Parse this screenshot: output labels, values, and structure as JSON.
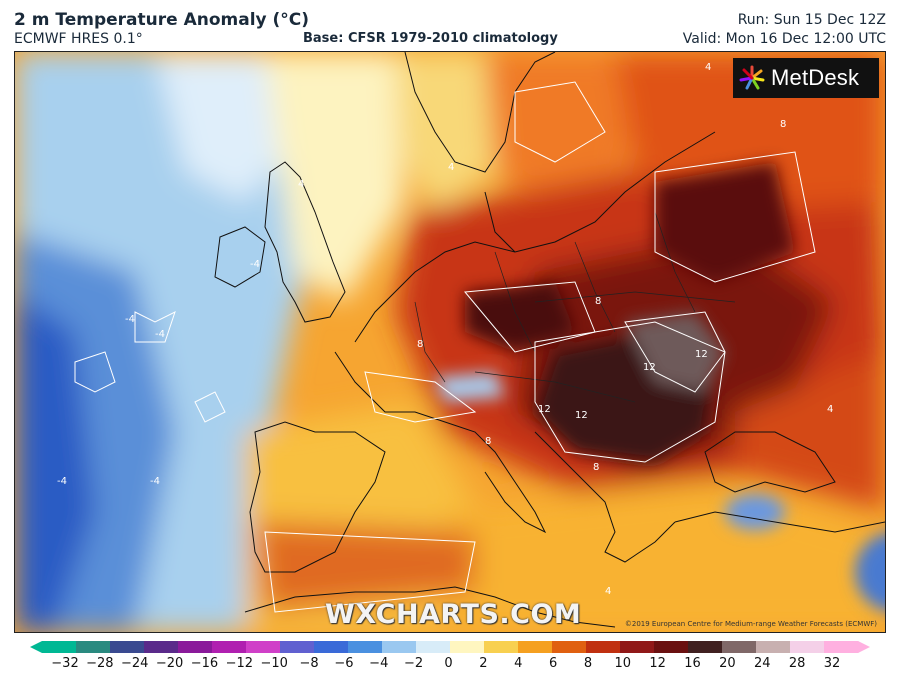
{
  "header": {
    "title": "2 m Temperature Anomaly (°C)",
    "model": "ECMWF HRES 0.1°",
    "base": "Base: CFSR 1979-2010 climatology",
    "run": "Run: Sun 15 Dec 12Z",
    "valid": "Valid: Mon 16 Dec 12:00 UTC"
  },
  "logo": {
    "text": "MetDesk",
    "icon": "starburst-logo-icon"
  },
  "watermark": "WXCHARTS.COM",
  "copyright": "©2019 European Centre for Medium-range Weather Forecasts (ECMWF)",
  "contour_labels": [
    "-4",
    "-4",
    "-4",
    "-4",
    "-4",
    "4",
    "4",
    "4",
    "8",
    "8",
    "8",
    "8",
    "12",
    "12",
    "12",
    "12",
    "8",
    "4",
    "4"
  ],
  "colorbar": {
    "ticks": [
      "−32",
      "−28",
      "−24",
      "−20",
      "−16",
      "−12",
      "−10",
      "−8",
      "−6",
      "−4",
      "−2",
      "0",
      "2",
      "4",
      "6",
      "8",
      "10",
      "12",
      "16",
      "20",
      "24",
      "28",
      "32"
    ],
    "colors": [
      "#00b894",
      "#2a8a80",
      "#3a4a90",
      "#5a2a8a",
      "#8a1a9a",
      "#b020b0",
      "#d040c8",
      "#6060d0",
      "#3a6ad8",
      "#4a90e0",
      "#9ac8f0",
      "#d8ecf8",
      "#fff6c0",
      "#f8d050",
      "#f5a020",
      "#e06010",
      "#c03010",
      "#901818",
      "#6a1010",
      "#402020",
      "#806868",
      "#c8b0b0",
      "#f4d0e8",
      "#ffb0e0"
    ]
  }
}
